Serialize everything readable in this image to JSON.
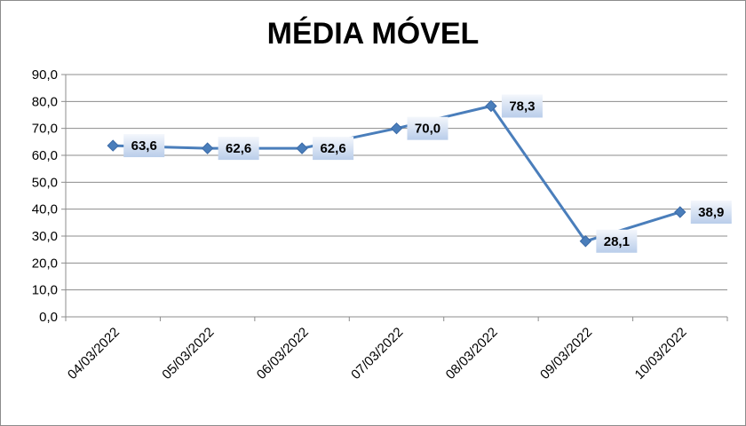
{
  "chart_data": {
    "type": "line",
    "title": "MÉDIA MÓVEL",
    "categories": [
      "04/03/2022",
      "05/03/2022",
      "06/03/2022",
      "07/03/2022",
      "08/03/2022",
      "09/03/2022",
      "10/03/2022"
    ],
    "series": [
      {
        "values": [
          63.6,
          62.6,
          62.6,
          70.0,
          78.3,
          28.1,
          38.9
        ],
        "data_labels": [
          "63,6",
          "62,6",
          "62,6",
          "70,0",
          "78,3",
          "28,1",
          "38,9"
        ]
      }
    ],
    "y_ticks": [
      "0,0",
      "10,0",
      "20,0",
      "30,0",
      "40,0",
      "50,0",
      "60,0",
      "70,0",
      "80,0",
      "90,0"
    ],
    "ylim": [
      0,
      90
    ],
    "grid": true,
    "legend": "none",
    "marker": "diamond",
    "colors": {
      "line": "#4a7ebb",
      "marker": "#4a7ebb",
      "label_box_top": "#f4f7fc",
      "label_box_bottom": "#b9cdea",
      "grid": "#8c8c8c"
    }
  }
}
